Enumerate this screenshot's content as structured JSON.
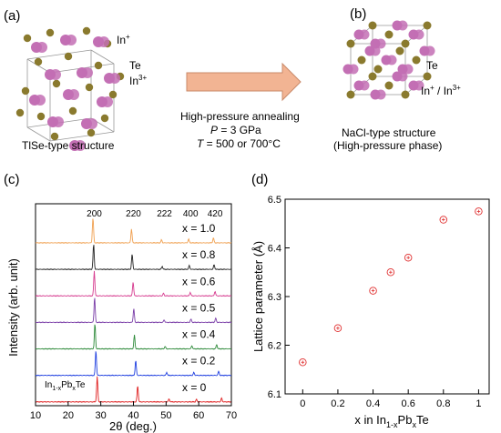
{
  "panels": {
    "a": "(a)",
    "b": "(b)",
    "c": "(c)",
    "d": "(d)"
  },
  "structure_a": {
    "label_in1": "In",
    "label_in1_sup": "+",
    "label_te": "Te",
    "label_in3": "In",
    "label_in3_sup": "3+",
    "caption": "TlSe-type structure"
  },
  "process": {
    "line1": "High-pressure annealing",
    "line2_var": "P",
    "line2_rest": " = 3 GPa",
    "line3_var": "T",
    "line3_rest": " = 500 or 700°C"
  },
  "structure_b": {
    "label_te": "Te",
    "label_in": "In",
    "label_in_sup": "+",
    "label_slash": " / In",
    "label_in3_sup": "3+",
    "caption1": "NaCl-type structure",
    "caption2": "(High-pressure phase)"
  },
  "colors": {
    "in_atom": "#c36fb4",
    "te_atom": "#8a7a2e",
    "arrow": "#f2b493",
    "arrow_stroke": "#c98a6a",
    "marker": "#e03030"
  },
  "chart_data": [
    {
      "type": "line",
      "panel": "c",
      "xlabel": "2θ (deg.)",
      "ylabel": "Intensity (arb. unit)",
      "xlim": [
        10,
        70
      ],
      "xticks": [
        10,
        20,
        30,
        40,
        50,
        60,
        70
      ],
      "series_label_sub": "In",
      "series_label_sub_a": "1-x",
      "series_label_mid": "Pb",
      "series_label_sub_b": "x",
      "series_label_end": "Te",
      "peak_labels": [
        {
          "text": "200",
          "x": 28.0
        },
        {
          "text": "220",
          "x": 40.0
        },
        {
          "text": "222",
          "x": 49.5
        },
        {
          "text": "400",
          "x": 57.5
        },
        {
          "text": "420",
          "x": 65.0
        }
      ],
      "series": [
        {
          "name": "x = 1.0",
          "color": "#f0a050",
          "peaks": [
            [
              27.6,
              1.0
            ],
            [
              39.4,
              0.55
            ],
            [
              48.6,
              0.12
            ],
            [
              56.9,
              0.15
            ],
            [
              64.5,
              0.2
            ]
          ]
        },
        {
          "name": "x = 0.8",
          "color": "#222222",
          "peaks": [
            [
              27.8,
              1.0
            ],
            [
              39.6,
              0.6
            ],
            [
              48.8,
              0.12
            ],
            [
              57.1,
              0.15
            ],
            [
              64.7,
              0.18
            ]
          ]
        },
        {
          "name": "x = 0.6",
          "color": "#d63b8f",
          "peaks": [
            [
              28.0,
              1.0
            ],
            [
              39.9,
              0.55
            ],
            [
              49.2,
              0.1
            ],
            [
              57.4,
              0.14
            ],
            [
              65.0,
              0.18
            ]
          ]
        },
        {
          "name": "x = 0.5",
          "color": "#7b3fa8",
          "peaks": [
            [
              28.1,
              1.0
            ],
            [
              40.1,
              0.55
            ],
            [
              49.4,
              0.1
            ],
            [
              57.6,
              0.13
            ],
            [
              65.2,
              0.17
            ]
          ]
        },
        {
          "name": "x = 0.4",
          "color": "#2e8a3a",
          "peaks": [
            [
              28.2,
              1.0
            ],
            [
              40.3,
              0.55
            ],
            [
              49.7,
              0.1
            ],
            [
              57.9,
              0.13
            ],
            [
              65.5,
              0.17
            ]
          ]
        },
        {
          "name": "x = 0.2",
          "color": "#2040e0",
          "peaks": [
            [
              28.5,
              1.0
            ],
            [
              40.7,
              0.6
            ],
            [
              50.2,
              0.12
            ],
            [
              58.5,
              0.12
            ],
            [
              66.1,
              0.16
            ]
          ]
        },
        {
          "name": "x = 0",
          "color": "#e02020",
          "peaks": [
            [
              28.9,
              1.0
            ],
            [
              41.3,
              0.65
            ],
            [
              50.9,
              0.12
            ],
            [
              59.3,
              0.1
            ],
            [
              67.0,
              0.15
            ]
          ]
        }
      ]
    },
    {
      "type": "scatter",
      "panel": "d",
      "xlabel_main": "x in In",
      "xlabel_sub_a": "1-x",
      "xlabel_mid": "Pb",
      "xlabel_sub_b": "x",
      "xlabel_end": "Te",
      "ylabel": "Lattice parameter (Å)",
      "xlim": [
        -0.1,
        1.06
      ],
      "ylim": [
        6.1,
        6.5
      ],
      "xticks": [
        0,
        0.2,
        0.4,
        0.6,
        0.8,
        1
      ],
      "yticks": [
        6.1,
        6.2,
        6.3,
        6.4,
        6.5
      ],
      "x": [
        0,
        0.2,
        0.4,
        0.5,
        0.6,
        0.8,
        1.0
      ],
      "y": [
        6.165,
        6.235,
        6.312,
        6.35,
        6.38,
        6.458,
        6.475
      ]
    }
  ]
}
